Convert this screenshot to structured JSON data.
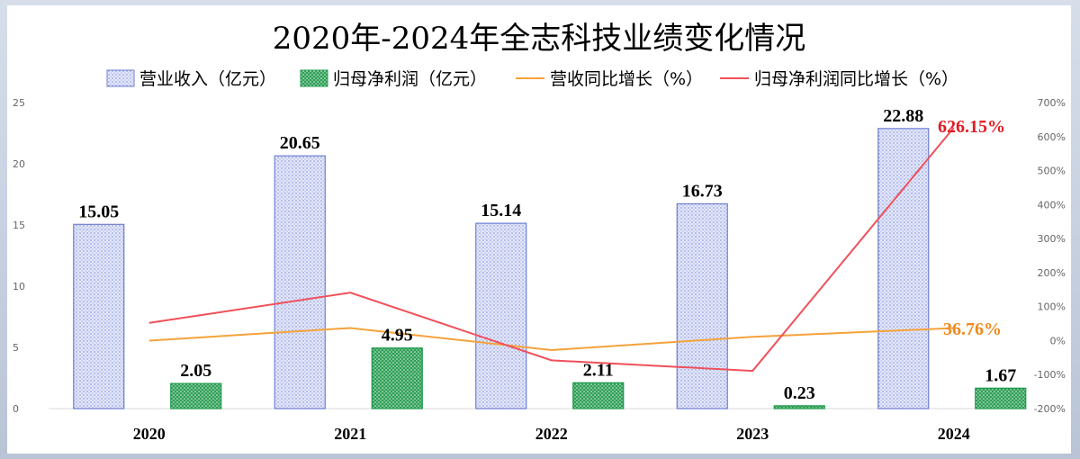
{
  "colors": {
    "revenue_fill": "#c9cff0",
    "revenue_stroke": "#6f7fd1",
    "profit_fill": "#b5e3c5",
    "profit_stroke": "#1e9a4b",
    "revenue_growth_line": "#f5a23a",
    "profit_growth_line": "#f0505a"
  },
  "chart_data": {
    "type": "bar",
    "title": "2020年-2024年全志科技业绩变化情况",
    "categories": [
      "2020",
      "2021",
      "2022",
      "2023",
      "2024"
    ],
    "legend": {
      "revenue": "营业收入（亿元）",
      "profit": "归母净利润（亿元）",
      "revenue_growth": "营收同比增长（%）",
      "profit_growth": "归母净利润同比增长（%）"
    },
    "series": [
      {
        "name": "营业收入（亿元）",
        "kind": "bar",
        "axis": "left",
        "values": [
          15.05,
          20.65,
          15.14,
          16.73,
          22.88
        ]
      },
      {
        "name": "归母净利润（亿元）",
        "kind": "bar",
        "axis": "left",
        "values": [
          2.05,
          4.95,
          2.11,
          0.23,
          1.67
        ]
      },
      {
        "name": "营收同比增长（%）",
        "kind": "line",
        "axis": "right",
        "values": [
          0,
          37,
          -28,
          11,
          36.76
        ]
      },
      {
        "name": "归母净利润同比增长（%）",
        "kind": "line",
        "axis": "right",
        "values": [
          52,
          141,
          -58,
          -89,
          626.15
        ]
      }
    ],
    "bar_labels": {
      "revenue": [
        "15.05",
        "20.65",
        "15.14",
        "16.73",
        "22.88"
      ],
      "profit": [
        "2.05",
        "4.95",
        "2.11",
        "0.23",
        "1.67"
      ]
    },
    "annotations": {
      "profit_growth_last": "626.15%",
      "revenue_growth_last": "36.76%"
    },
    "left_axis": {
      "min": 0,
      "max": 25,
      "step": 5,
      "ticks": [
        "0",
        "5",
        "10",
        "15",
        "20",
        "25"
      ]
    },
    "right_axis": {
      "min": -200,
      "max": 700,
      "step": 100,
      "ticks": [
        "-200%",
        "-100%",
        "0%",
        "100%",
        "200%",
        "300%",
        "400%",
        "500%",
        "600%",
        "700%"
      ]
    },
    "legend_position": "top",
    "grid": false
  }
}
